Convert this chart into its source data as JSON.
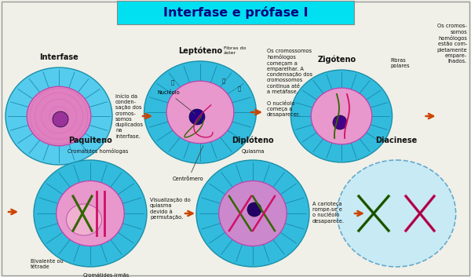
{
  "title": "Interfase e prófase I",
  "title_bg": "#00e0f0",
  "bg_color": "#f0f0e8",
  "outer_cell_color": "#44bbd4",
  "inner_cell_color": "#e888c0",
  "border_color": "#cc55aa",
  "ray_color": "#1188aa",
  "nucleolus_colors": [
    "#993399",
    "#220099",
    "#440088"
  ],
  "chrom_green": "#336600",
  "chrom_green2": "#66aa00",
  "chrom_pink": "#cc1166",
  "chrom_dark": "#003300",
  "arrow_color": "#cc4400",
  "title_text": "Interfase e prófase I",
  "label_interfase": "Interfase",
  "label_leptoteno": "Leptóteno",
  "label_zigoteno": "Zigóteno",
  "label_paquiteno": "Paquiteno",
  "label_diploteno": "Diplóteno",
  "label_diacinese": "Diacinese",
  "text_interfase": "Início da\nconden-\nsação dos\ncromos-\nsomos\nduplicados\nna\ninterfase.",
  "text_nucl": "Nucléolo",
  "text_fibras": "Fibras do\náster",
  "text_centromero": "Centrômero",
  "text_middle": "Os cromossomos\nhomólogos\ncomeçam a\nemparelhar. A\ncondensação dos\ncromossomos\ncontinua até\na metáfase.\n\nO nucléolo\ncomeça a\ndesaparecer.",
  "text_fibras_polares": "Fibras\npolares",
  "text_zigoteno_right": "Os cromos-\nsomos\nhomólogos\nestão com-\npletamente\nempare-\nlhados.",
  "text_crom_homologas": "Cromátides homólogas",
  "text_bivalente": "Bivalente ou\ntétrade",
  "text_crom_irmas": "Cromátides-irmãs",
  "text_visualizacao": "Visualização do\nquiasma\ndevido à\npermutação.",
  "text_quiasma": "Quiasma",
  "text_carioteca": "A carioteca\nrompe-se e\no nucléolo\ndesaparece."
}
